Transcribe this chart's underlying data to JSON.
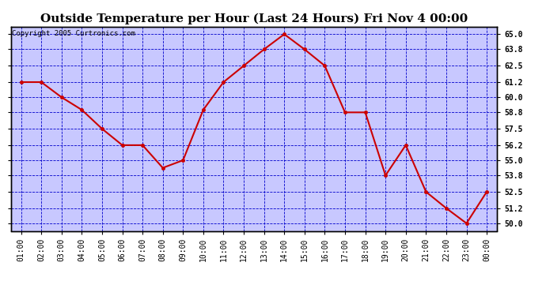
{
  "title": "Outside Temperature per Hour (Last 24 Hours) Fri Nov 4 00:00",
  "copyright": "Copyright 2005 Curtronics.com",
  "x_labels": [
    "01:00",
    "02:00",
    "03:00",
    "04:00",
    "05:00",
    "06:00",
    "07:00",
    "08:00",
    "09:00",
    "10:00",
    "11:00",
    "12:00",
    "13:00",
    "14:00",
    "15:00",
    "16:00",
    "17:00",
    "18:00",
    "19:00",
    "20:00",
    "21:00",
    "22:00",
    "23:00",
    "00:00"
  ],
  "y_values": [
    61.2,
    61.2,
    60.0,
    59.0,
    57.5,
    56.2,
    56.2,
    54.4,
    55.0,
    59.0,
    61.2,
    62.5,
    63.8,
    65.0,
    63.8,
    62.5,
    58.8,
    58.8,
    53.8,
    56.2,
    52.5,
    51.2,
    50.0,
    52.5
  ],
  "line_color": "#cc0000",
  "marker_color": "#cc0000",
  "fig_bg_color": "#ffffff",
  "plot_bg_color": "#c8c8ff",
  "grid_color": "#0000cc",
  "border_color": "#000000",
  "title_color": "#000000",
  "copyright_color": "#000000",
  "ylim_min": 49.4,
  "ylim_max": 65.6,
  "yticks": [
    50.0,
    51.2,
    52.5,
    53.8,
    55.0,
    56.2,
    57.5,
    58.8,
    60.0,
    61.2,
    62.5,
    63.8,
    65.0
  ],
  "title_fontsize": 11,
  "copyright_fontsize": 6.5,
  "tick_fontsize": 7,
  "line_width": 1.5,
  "marker_size": 3
}
